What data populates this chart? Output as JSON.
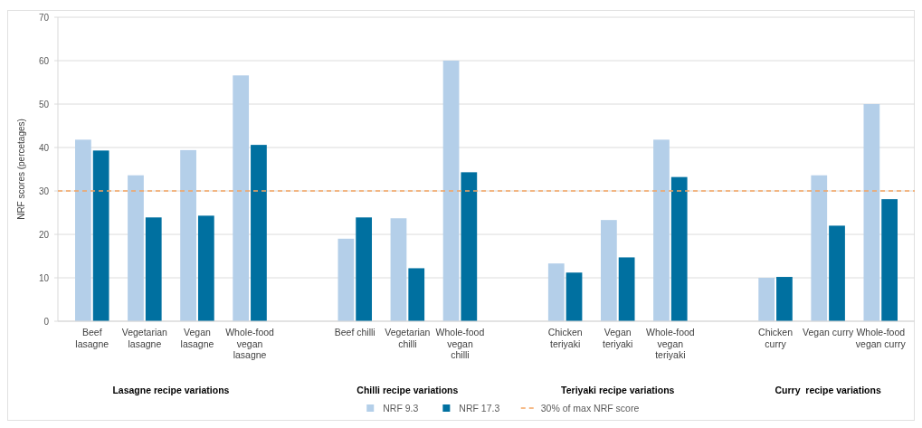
{
  "chart_data": {
    "type": "bar",
    "ylabel": "NRF scores (percetages)",
    "categories": [
      "Beef lasagne",
      "Vegetarian lasagne",
      "Vegan lasagne",
      "Whole-food vegan lasagne",
      null,
      "Beef chilli",
      "Vegetarian chilli",
      "Whole-food vegan chilli",
      null,
      "Chicken teriyaki",
      "Vegan teriyaki",
      "Whole-food vegan teriyaki",
      null,
      "Chicken curry",
      "Vegan curry",
      "Whole-food vegan curry"
    ],
    "series": [
      {
        "name": "NRF 9.3",
        "color": "#b4cfe9",
        "values": [
          41.8,
          33.6,
          39.4,
          56.6,
          null,
          19.0,
          23.7,
          60.0,
          null,
          13.3,
          23.3,
          41.8,
          null,
          10.0,
          33.6,
          50.0
        ]
      },
      {
        "name": "NRF 17.3",
        "color": "#0070a0",
        "values": [
          39.3,
          23.9,
          24.3,
          40.6,
          null,
          23.9,
          12.2,
          34.3,
          null,
          11.2,
          14.7,
          33.2,
          null,
          10.2,
          22.0,
          28.1
        ]
      }
    ],
    "ylim": [
      0,
      70
    ],
    "yticks": [
      0,
      10,
      20,
      30,
      40,
      50,
      60,
      70
    ],
    "grid": "y",
    "legend": "bottom",
    "ref_lines": [
      {
        "axis": "y",
        "value": 30,
        "label": "30% of max NRF score",
        "color": "#f4a460",
        "line_style": "dashed"
      }
    ],
    "annotations": [
      "Lasagne recipe variations",
      "Chilli recipe variations",
      "Teriyaki recipe variations",
      "Curry  recipe variations"
    ]
  }
}
